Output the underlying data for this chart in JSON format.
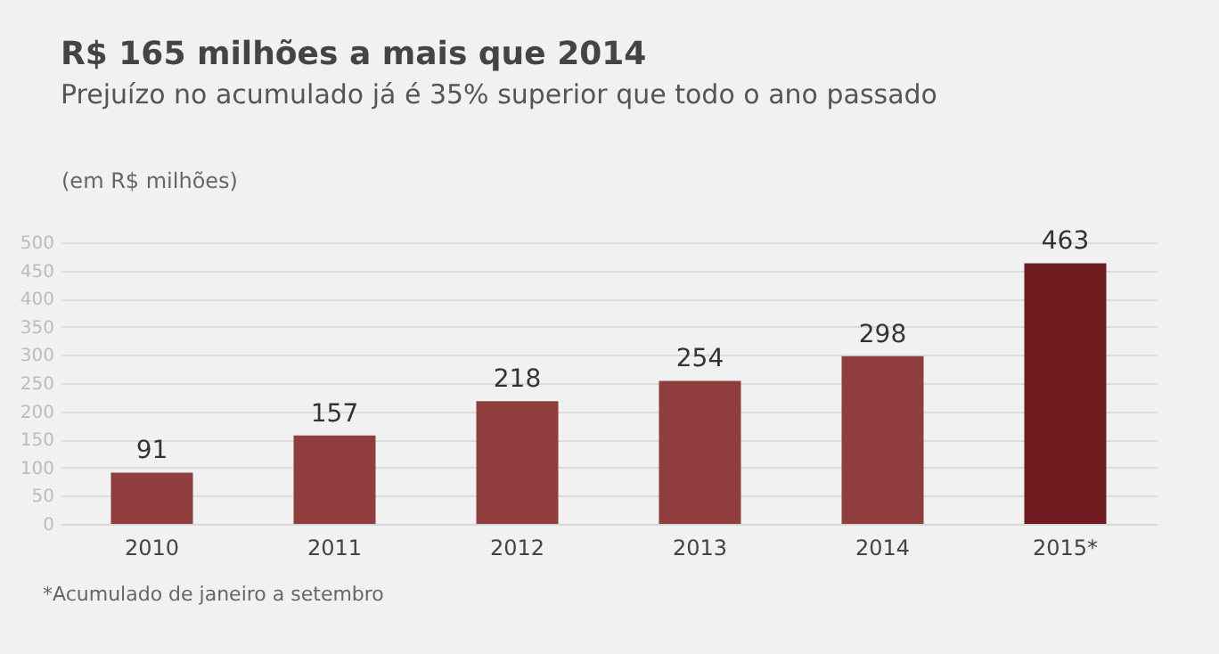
{
  "chart_data": {
    "type": "bar",
    "title": "R$ 165 milhões a mais que 2014",
    "subtitle": "Prejuízo no acumulado já é 35% superior que todo o ano passado",
    "ylabel": "(em R$ milhões)",
    "categories": [
      "2010",
      "2011",
      "2012",
      "2013",
      "2014",
      "2015*"
    ],
    "values": [
      91,
      157,
      218,
      254,
      298,
      463
    ],
    "colors": [
      "#8f3d3d",
      "#8f3d3d",
      "#8f3d3d",
      "#8f3d3d",
      "#8f3d3d",
      "#6e1b1f"
    ],
    "ylim": [
      0,
      500
    ],
    "yticks": [
      0,
      50,
      100,
      150,
      200,
      250,
      300,
      350,
      400,
      450,
      500
    ],
    "grid": "y",
    "data_labels": true,
    "annotations": [
      "*Acumulado de janeiro a setembro"
    ]
  }
}
